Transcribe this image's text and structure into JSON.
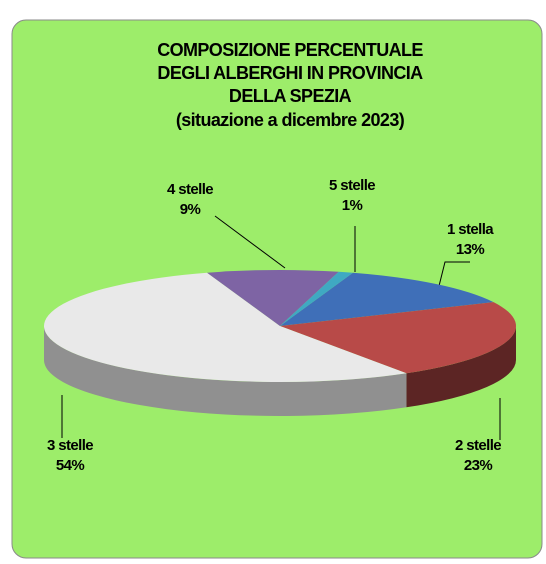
{
  "chart_data": {
    "type": "pie3d",
    "title": [
      "COMPOSIZIONE PERCENTUALE",
      "DEGLI ALBERGHI IN PROVINCIA",
      "DELLA SPEZIA"
    ],
    "subtitle": "(situazione a dicembre 2023)",
    "categories": [
      "1 stella",
      "2 stelle",
      "3 stelle",
      "4 stelle",
      "5 stelle"
    ],
    "values": [
      13,
      23,
      54,
      9,
      1
    ],
    "value_labels": [
      "13%",
      "23%",
      "54%",
      "9%",
      "1%"
    ],
    "colors": [
      "#3f6fb8",
      "#b84a48",
      "#e9e9e9",
      "#7e64a4",
      "#3fa9c2"
    ]
  }
}
